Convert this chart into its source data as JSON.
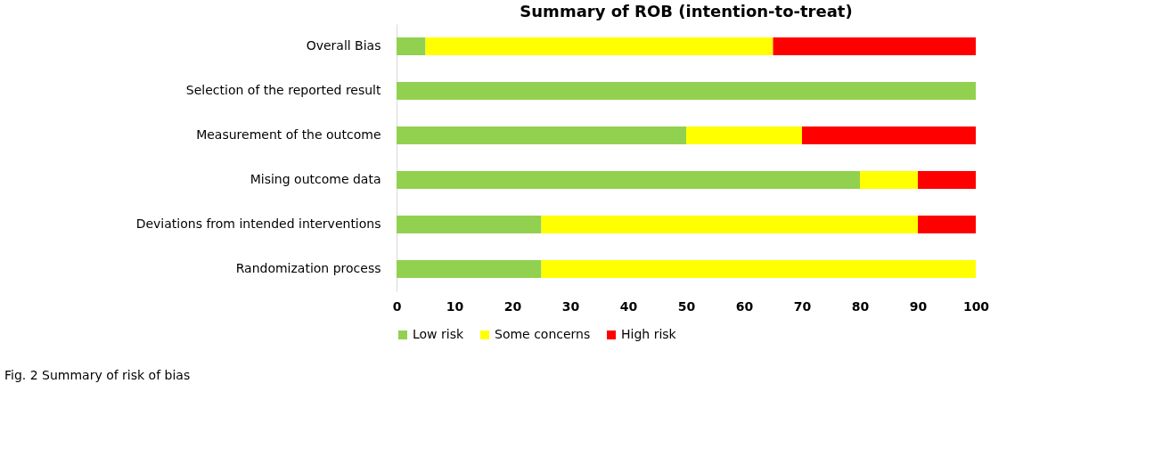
{
  "chart_data": {
    "type": "bar",
    "orientation": "horizontal",
    "stacked": true,
    "title": "Summary of ROB (intention-to-treat)",
    "categories": [
      "Overall Bias",
      "Selection of the reported result",
      "Measurement of the outcome",
      "Mising outcome data",
      "Deviations from intended interventions",
      "Randomization process"
    ],
    "series": [
      {
        "name": "Low risk",
        "color": "#92d050",
        "values": [
          5,
          100,
          50,
          80,
          25,
          25
        ]
      },
      {
        "name": "Some concerns",
        "color": "#ffff00",
        "values": [
          60,
          0,
          20,
          10,
          65,
          75
        ]
      },
      {
        "name": "High risk",
        "color": "#ff0000",
        "values": [
          35,
          0,
          30,
          10,
          10,
          0
        ]
      }
    ],
    "xlim": [
      0,
      100
    ],
    "xticks": [
      0,
      10,
      20,
      30,
      40,
      50,
      60,
      70,
      80,
      90,
      100
    ],
    "grid": false,
    "legend": "bottom",
    "annotations": [
      "Fig. 2  Summary of risk of bias"
    ]
  }
}
